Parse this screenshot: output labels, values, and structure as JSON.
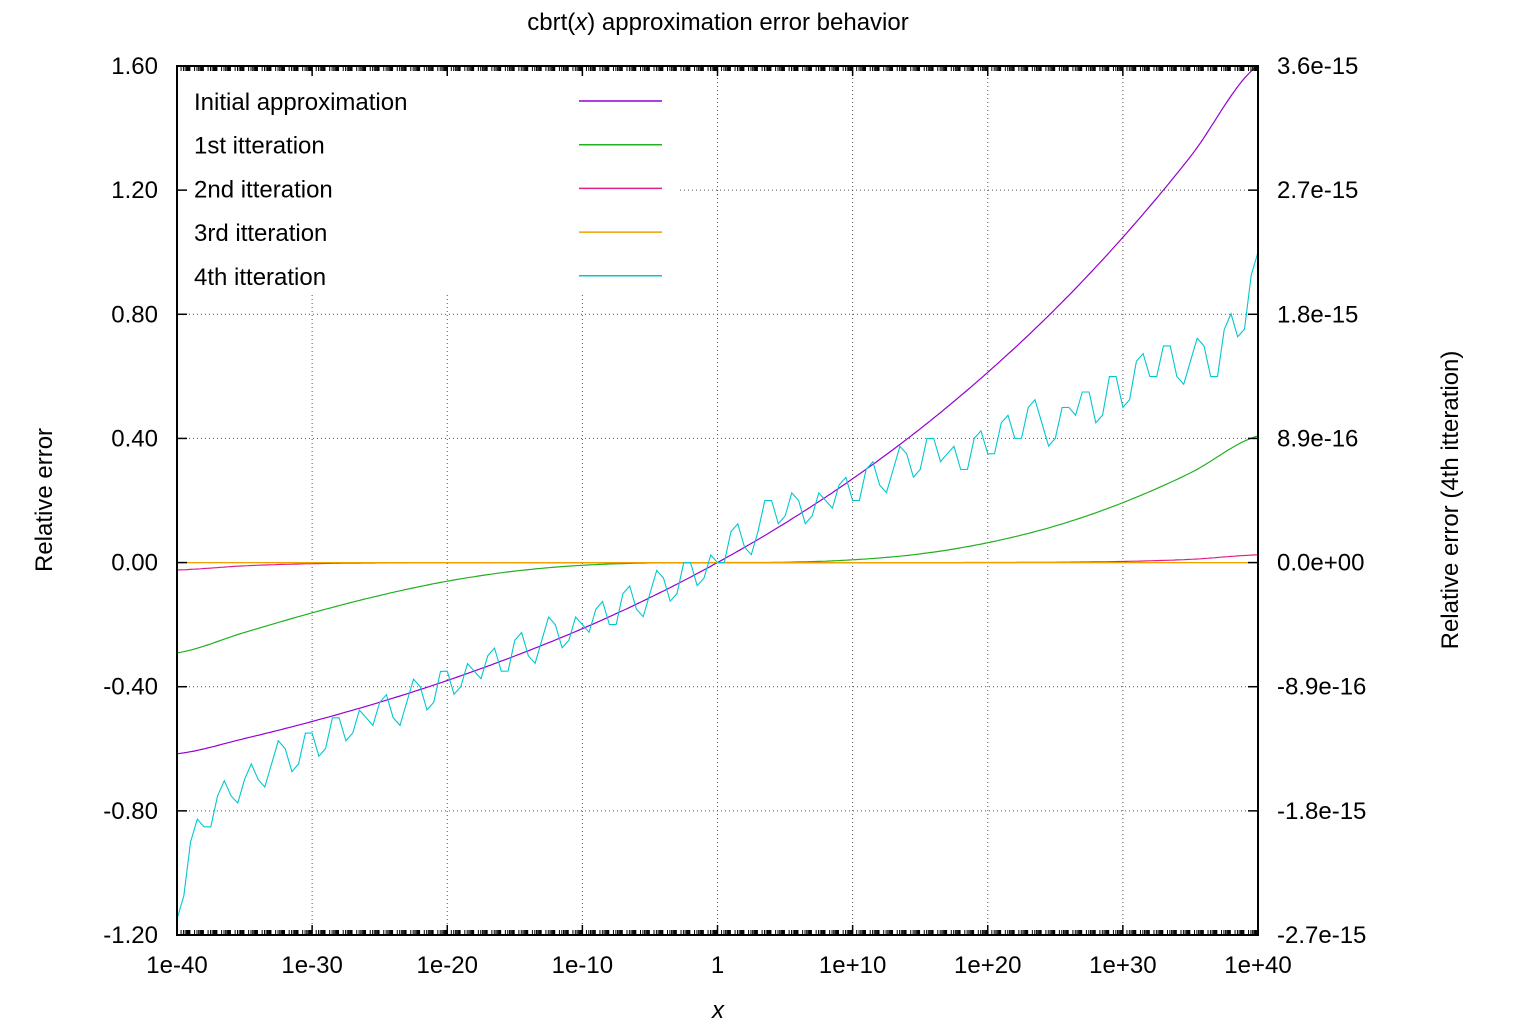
{
  "chart_data": {
    "type": "line",
    "title_prefix": "cbrt(",
    "title_var": "x",
    "title_suffix": ") approximation error behavior",
    "xlabel": "x",
    "ylabel": "Relative error",
    "y2label": "Relative error (4th itteration)",
    "xscale": "log",
    "xlim": [
      1e-40,
      1e+40
    ],
    "ylim": [
      -1.2,
      1.6
    ],
    "y2lim": [
      -2.664e-15,
      3.552e-15
    ],
    "grid": true,
    "legend_placement": "top-left",
    "xticks": [
      {
        "value": 1e-40,
        "label": "1e-40"
      },
      {
        "value": 1e-30,
        "label": "1e-30"
      },
      {
        "value": 1e-20,
        "label": "1e-20"
      },
      {
        "value": 1e-10,
        "label": "1e-10"
      },
      {
        "value": 1,
        "label": "1"
      },
      {
        "value": 10000000000.0,
        "label": "1e+10"
      },
      {
        "value": 1e+20,
        "label": "1e+20"
      },
      {
        "value": 1e+30,
        "label": "1e+30"
      },
      {
        "value": 1e+40,
        "label": "1e+40"
      }
    ],
    "yticks": [
      {
        "value": 1.6,
        "label": "1.60"
      },
      {
        "value": 1.2,
        "label": "1.20"
      },
      {
        "value": 0.8,
        "label": "0.80"
      },
      {
        "value": 0.4,
        "label": "0.40"
      },
      {
        "value": 0.0,
        "label": "0.00"
      },
      {
        "value": -0.4,
        "label": "-0.40"
      },
      {
        "value": -0.8,
        "label": "-0.80"
      },
      {
        "value": -1.2,
        "label": "-1.20"
      }
    ],
    "y2ticks": [
      {
        "value": 3.552e-15,
        "label": "3.6e-15"
      },
      {
        "value": 2.664e-15,
        "label": "2.7e-15"
      },
      {
        "value": 1.776e-15,
        "label": "1.8e-15"
      },
      {
        "value": 8.88e-16,
        "label": "8.9e-16"
      },
      {
        "value": 0,
        "label": "0.0e+00"
      },
      {
        "value": -8.88e-16,
        "label": "-8.9e-16"
      },
      {
        "value": -1.776e-15,
        "label": "-1.8e-15"
      },
      {
        "value": -2.664e-15,
        "label": "-2.7e-15"
      }
    ],
    "x_log10": [
      -40,
      -35,
      -30,
      -25,
      -20,
      -15,
      -10,
      -5,
      0,
      5,
      10,
      15,
      20,
      25,
      30,
      35,
      40
    ],
    "series": [
      {
        "name": "Initial approximation",
        "color": "#9400d3",
        "axis": "y",
        "values": [
          -0.616,
          -0.567,
          -0.512,
          -0.45,
          -0.38,
          -0.301,
          -0.213,
          -0.113,
          0,
          0.127,
          0.27,
          0.431,
          0.613,
          0.817,
          1.048,
          1.308,
          1.601
        ]
      },
      {
        "name": "1st itteration",
        "color": "#20b020",
        "axis": "y",
        "values": [
          -0.291,
          -0.225,
          -0.162,
          -0.106,
          -0.06,
          -0.0275,
          -0.0087,
          -0.0012,
          0,
          0.0011,
          0.0088,
          0.028,
          0.064,
          0.118,
          0.193,
          0.289,
          0.408
        ]
      },
      {
        "name": "2nd itteration",
        "color": "#e0208a",
        "axis": "y",
        "values": [
          -0.024,
          -0.0105,
          -0.0036,
          -0.0011,
          -0.0002,
          0,
          0,
          0,
          0,
          0,
          0,
          0,
          0.0002,
          0.001,
          0.0036,
          0.0104,
          0.025
        ]
      },
      {
        "name": "3rd itteration",
        "color": "#f0a000",
        "axis": "y",
        "values": [
          0,
          0,
          0,
          0,
          0,
          0,
          0,
          0,
          0,
          0,
          0,
          0,
          0,
          0,
          0,
          0,
          0
        ]
      }
    ],
    "series_4th": {
      "name": "4th itteration",
      "color": "#00c8d0",
      "axis": "y2",
      "x_log10_start": -40,
      "x_log10_step": 1,
      "values": [
        -2.55e-15,
        -2e-15,
        -1.89e-15,
        -1.67e-15,
        -1.67e-15,
        -1.55e-15,
        -1.55e-15,
        -1.44e-15,
        -1.33e-15,
        -1.44e-15,
        -1.22e-15,
        -1.33e-15,
        -1.11e-15,
        -1.22e-15,
        -1.11e-15,
        -1e-15,
        -1.11e-15,
        -1e-15,
        -8.88e-16,
        -1e-15,
        -7.77e-16,
        -8.88e-16,
        -7.77e-16,
        -6.66e-16,
        -7.77e-16,
        -5.55e-16,
        -6.66e-16,
        -5.55e-16,
        -4.44e-16,
        -5.55e-16,
        -4.44e-16,
        -3.33e-16,
        -4.44e-16,
        -2.22e-16,
        -3.33e-16,
        -2.22e-16,
        -1.11e-16,
        -2.22e-16,
        0,
        -1.11e-16,
        0,
        2.22e-16,
        1.11e-16,
        2.22e-16,
        4.44e-16,
        3.33e-16,
        4.44e-16,
        3.33e-16,
        4.44e-16,
        5.55e-16,
        4.44e-16,
        6.66e-16,
        5.55e-16,
        6.66e-16,
        7.77e-16,
        6.66e-16,
        8.88e-16,
        7.77e-16,
        6.66e-16,
        8.88e-16,
        7.77e-16,
        1e-15,
        8.88e-16,
        1.11e-15,
        1e-15,
        8.88e-16,
        1.11e-15,
        1.22e-15,
        1e-15,
        1.33e-15,
        1.11e-15,
        1.44e-15,
        1.33e-15,
        1.55e-15,
        1.33e-15,
        1.44e-15,
        1.55e-15,
        1.33e-15,
        1.78e-15,
        1.67e-15,
        2.22e-15
      ]
    }
  }
}
